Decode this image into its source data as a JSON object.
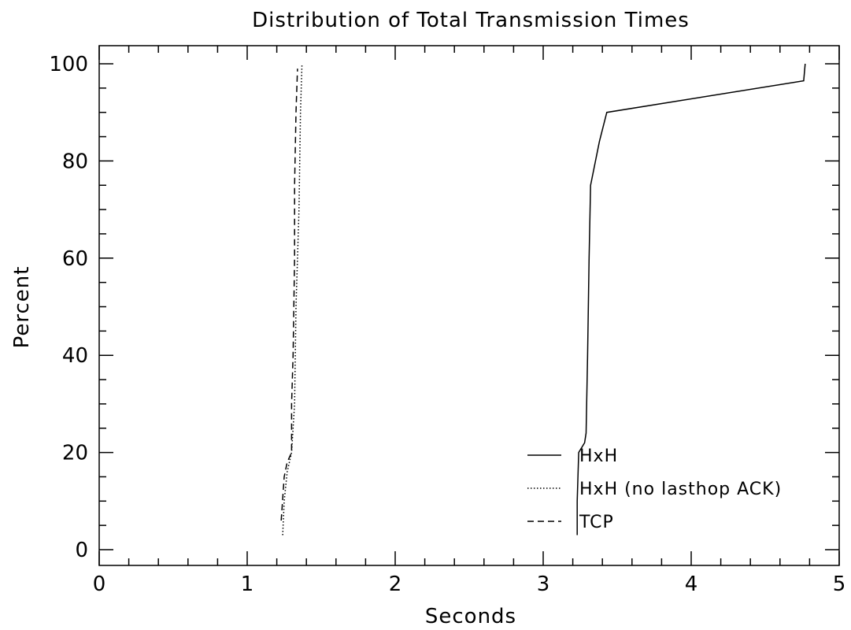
{
  "chart_data": {
    "type": "line",
    "title": "Distribution of Total Transmission Times",
    "xlabel": "Seconds",
    "ylabel": "Percent",
    "xlim": [
      0,
      5
    ],
    "ylim": [
      0,
      100
    ],
    "xticks": [
      0,
      1,
      2,
      3,
      4,
      5
    ],
    "yticks": [
      0,
      20,
      40,
      60,
      80,
      100
    ],
    "grid": false,
    "legend_position": "bottom-right",
    "series": [
      {
        "name": "HxH",
        "line_style": "solid",
        "points": [
          [
            3.23,
            3
          ],
          [
            3.23,
            10
          ],
          [
            3.24,
            20
          ],
          [
            3.28,
            22
          ],
          [
            3.29,
            24
          ],
          [
            3.3,
            40
          ],
          [
            3.31,
            60
          ],
          [
            3.32,
            75
          ],
          [
            3.38,
            84
          ],
          [
            3.43,
            90
          ],
          [
            4.76,
            96.5
          ],
          [
            4.77,
            100
          ]
        ]
      },
      {
        "name": "HxH (no lasthop ACK)",
        "line_style": "dotted",
        "points": [
          [
            1.24,
            3
          ],
          [
            1.25,
            10
          ],
          [
            1.27,
            16
          ],
          [
            1.3,
            20
          ],
          [
            1.32,
            30
          ],
          [
            1.33,
            50
          ],
          [
            1.35,
            70
          ],
          [
            1.36,
            90
          ],
          [
            1.37,
            100
          ]
        ]
      },
      {
        "name": "TCP",
        "line_style": "dashed",
        "points": [
          [
            1.23,
            6
          ],
          [
            1.25,
            15
          ],
          [
            1.27,
            18
          ],
          [
            1.3,
            20
          ],
          [
            1.3,
            30
          ],
          [
            1.31,
            40
          ],
          [
            1.32,
            60
          ],
          [
            1.32,
            75
          ],
          [
            1.33,
            90
          ],
          [
            1.34,
            99
          ]
        ]
      }
    ]
  }
}
